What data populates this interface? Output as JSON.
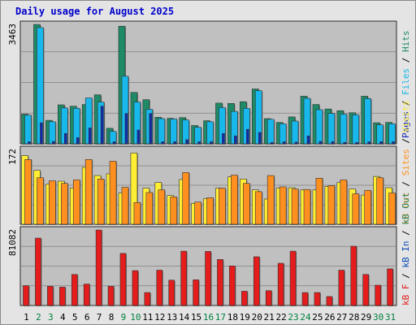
{
  "title": "Daily usage for August 2025",
  "chart_data": [
    {
      "type": "bar",
      "panel": "top",
      "ymax_label": "3463",
      "ylim": [
        0,
        3463
      ],
      "categories": [
        "1",
        "2",
        "3",
        "4",
        "5",
        "6",
        "7",
        "8",
        "9",
        "10",
        "11",
        "12",
        "13",
        "14",
        "15",
        "16",
        "17",
        "18",
        "19",
        "20",
        "21",
        "22",
        "23",
        "24",
        "25",
        "26",
        "27",
        "28",
        "29",
        "30",
        "31"
      ],
      "legend": {
        "pages": "Pages",
        "files": "Files",
        "hits": "Hits"
      },
      "series": [
        {
          "name": "Hits",
          "values": [
            860,
            3460,
            680,
            1130,
            1090,
            1140,
            1420,
            450,
            3410,
            1490,
            1280,
            770,
            740,
            760,
            530,
            670,
            1180,
            1170,
            1220,
            1590,
            730,
            620,
            780,
            1380,
            1140,
            1010,
            960,
            900,
            1380,
            610,
            620
          ]
        },
        {
          "name": "Files",
          "values": [
            830,
            3370,
            640,
            1040,
            1030,
            1330,
            1210,
            360,
            1960,
            1210,
            1000,
            730,
            720,
            690,
            480,
            640,
            1050,
            940,
            1030,
            1540,
            710,
            580,
            660,
            1320,
            990,
            880,
            860,
            840,
            1310,
            550,
            580
          ]
        },
        {
          "name": "Pages",
          "values": [
            60,
            610,
            70,
            300,
            180,
            460,
            1090,
            60,
            880,
            400,
            880,
            60,
            60,
            120,
            60,
            60,
            300,
            230,
            420,
            330,
            40,
            60,
            50,
            230,
            70,
            60,
            40,
            40,
            60,
            60,
            60
          ]
        }
      ],
      "colors": {
        "hits": "#1e8a66",
        "files": "#18b8ec",
        "pages": "#1428b4"
      }
    },
    {
      "type": "bar",
      "panel": "middle",
      "ymax_label": "172",
      "ylim": [
        0,
        172
      ],
      "categories": [
        "1",
        "2",
        "3",
        "4",
        "5",
        "6",
        "7",
        "8",
        "9",
        "10",
        "11",
        "12",
        "13",
        "14",
        "15",
        "16",
        "17",
        "18",
        "19",
        "20",
        "21",
        "22",
        "23",
        "24",
        "25",
        "26",
        "27",
        "28",
        "29",
        "30",
        "31"
      ],
      "legend": {
        "visits": "Visits",
        "sites": "Sites",
        "kb_out": "kB Out"
      },
      "series": [
        {
          "name": "Visits",
          "values": [
            158,
            124,
            92,
            99,
            83,
            131,
            112,
            116,
            72,
            164,
            83,
            96,
            66,
            103,
            48,
            59,
            83,
            109,
            104,
            79,
            58,
            83,
            84,
            79,
            79,
            87,
            96,
            81,
            67,
            110,
            84
          ]
        },
        {
          "name": "Sites",
          "values": [
            149,
            107,
            100,
            94,
            102,
            149,
            104,
            145,
            85,
            50,
            73,
            79,
            63,
            119,
            51,
            61,
            83,
            113,
            94,
            75,
            112,
            86,
            81,
            80,
            106,
            89,
            102,
            70,
            78,
            107,
            72
          ]
        }
      ],
      "colors": {
        "visits": "#ffee33",
        "sites": "#ff9020",
        "kb_out": "#ff9020"
      }
    },
    {
      "type": "bar",
      "panel": "bottom",
      "ymax_label": "81082",
      "ylim": [
        0,
        81082
      ],
      "categories": [
        "1",
        "2",
        "3",
        "4",
        "5",
        "6",
        "7",
        "8",
        "9",
        "10",
        "11",
        "12",
        "13",
        "14",
        "15",
        "16",
        "17",
        "18",
        "19",
        "20",
        "21",
        "22",
        "23",
        "24",
        "25",
        "26",
        "27",
        "28",
        "29",
        "30",
        "31"
      ],
      "legend": {
        "kb_f": "kB F",
        "kb_in": "kB In",
        "kb_out": "kB Out"
      },
      "series": [
        {
          "name": "kB In",
          "values": [
            21300,
            72300,
            20600,
            19700,
            33300,
            23000,
            81000,
            20600,
            55900,
            37400,
            13900,
            37900,
            27200,
            58300,
            27600,
            58000,
            49400,
            42400,
            15300,
            52300,
            15900,
            45300,
            58300,
            13900,
            13900,
            9600,
            37900,
            63600,
            33300,
            21800,
            39300
          ]
        }
      ],
      "colors": {
        "kb_f": "#e02020",
        "kb_in": "#0a4ab8",
        "kb_out": "#1e8a66",
        "bars": "#e41c1c"
      }
    }
  ],
  "day_label_colors": {
    "weekday": "#000000",
    "weekend": "#00803f"
  },
  "weekend_days": [
    "2",
    "3",
    "9",
    "10",
    "16",
    "17",
    "23",
    "24",
    "30",
    "31"
  ]
}
